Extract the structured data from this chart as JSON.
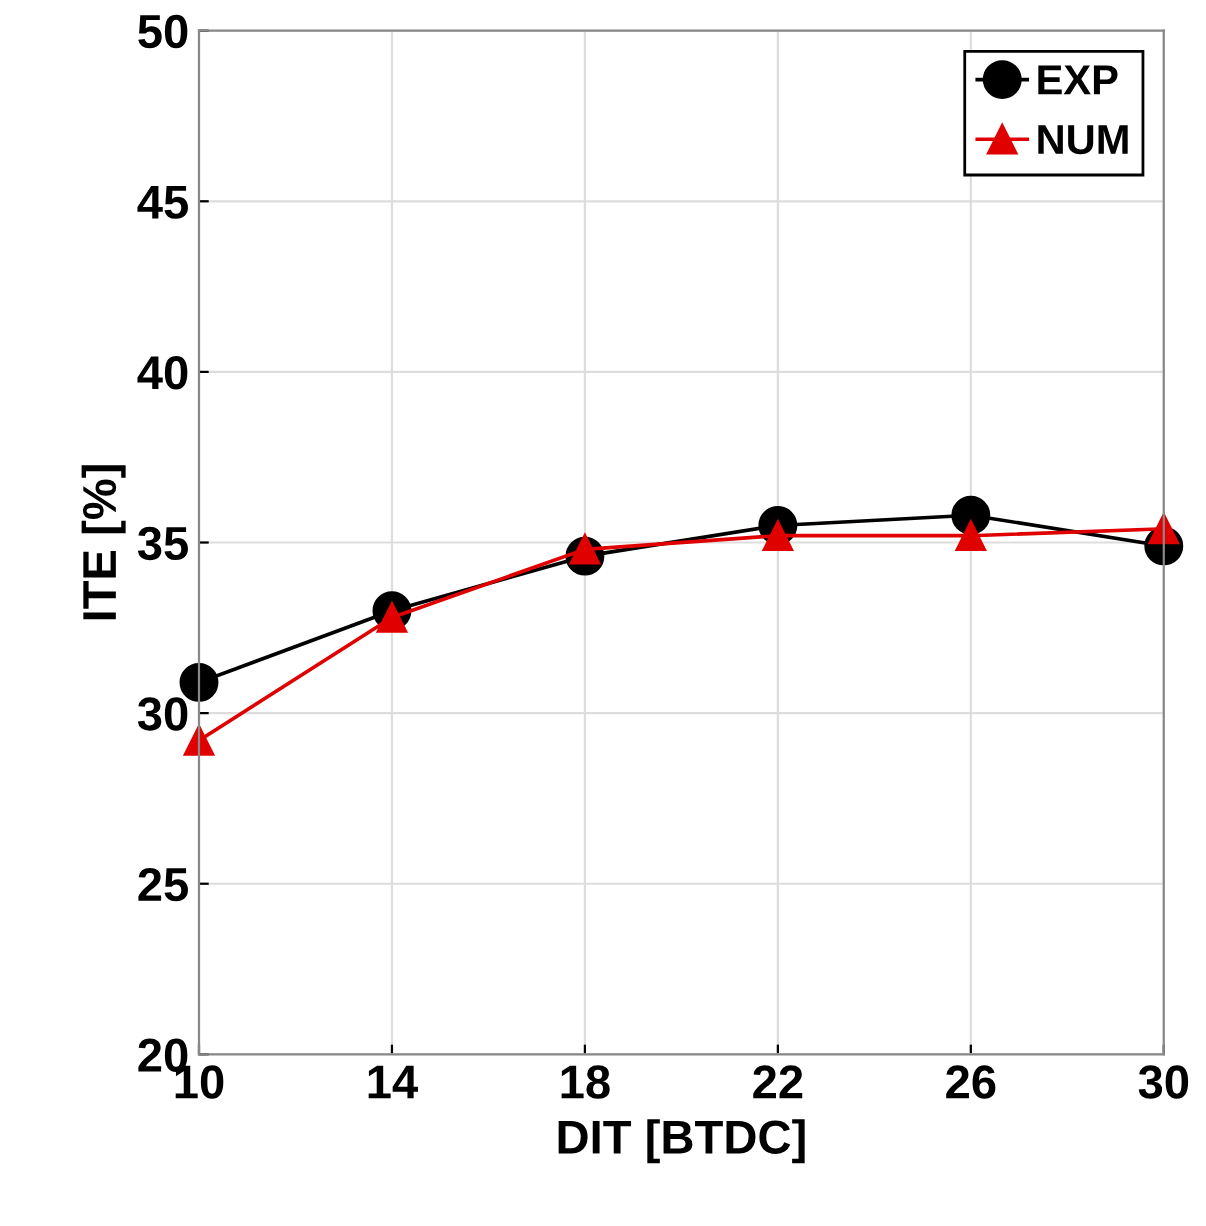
{
  "chart_data": {
    "type": "line",
    "xlabel": "DIT [BTDC]",
    "ylabel": "ITE [%]",
    "x": [
      10,
      14,
      18,
      22,
      26,
      30
    ],
    "series": [
      {
        "name": "EXP",
        "color": "#000000",
        "marker": "circle",
        "values": [
          30.9,
          33.0,
          34.6,
          35.5,
          35.8,
          34.9
        ]
      },
      {
        "name": "NUM",
        "color": "#e00000",
        "marker": "triangle",
        "values": [
          29.2,
          32.8,
          34.8,
          35.2,
          35.2,
          35.4
        ]
      }
    ],
    "xlim": [
      10,
      30
    ],
    "xticks": [
      10,
      14,
      18,
      22,
      26,
      30
    ],
    "ylim": [
      20,
      50
    ],
    "yticks": [
      20,
      25,
      30,
      35,
      40,
      45,
      50
    ],
    "grid": true,
    "legend": "top right",
    "line_style": "solid"
  }
}
